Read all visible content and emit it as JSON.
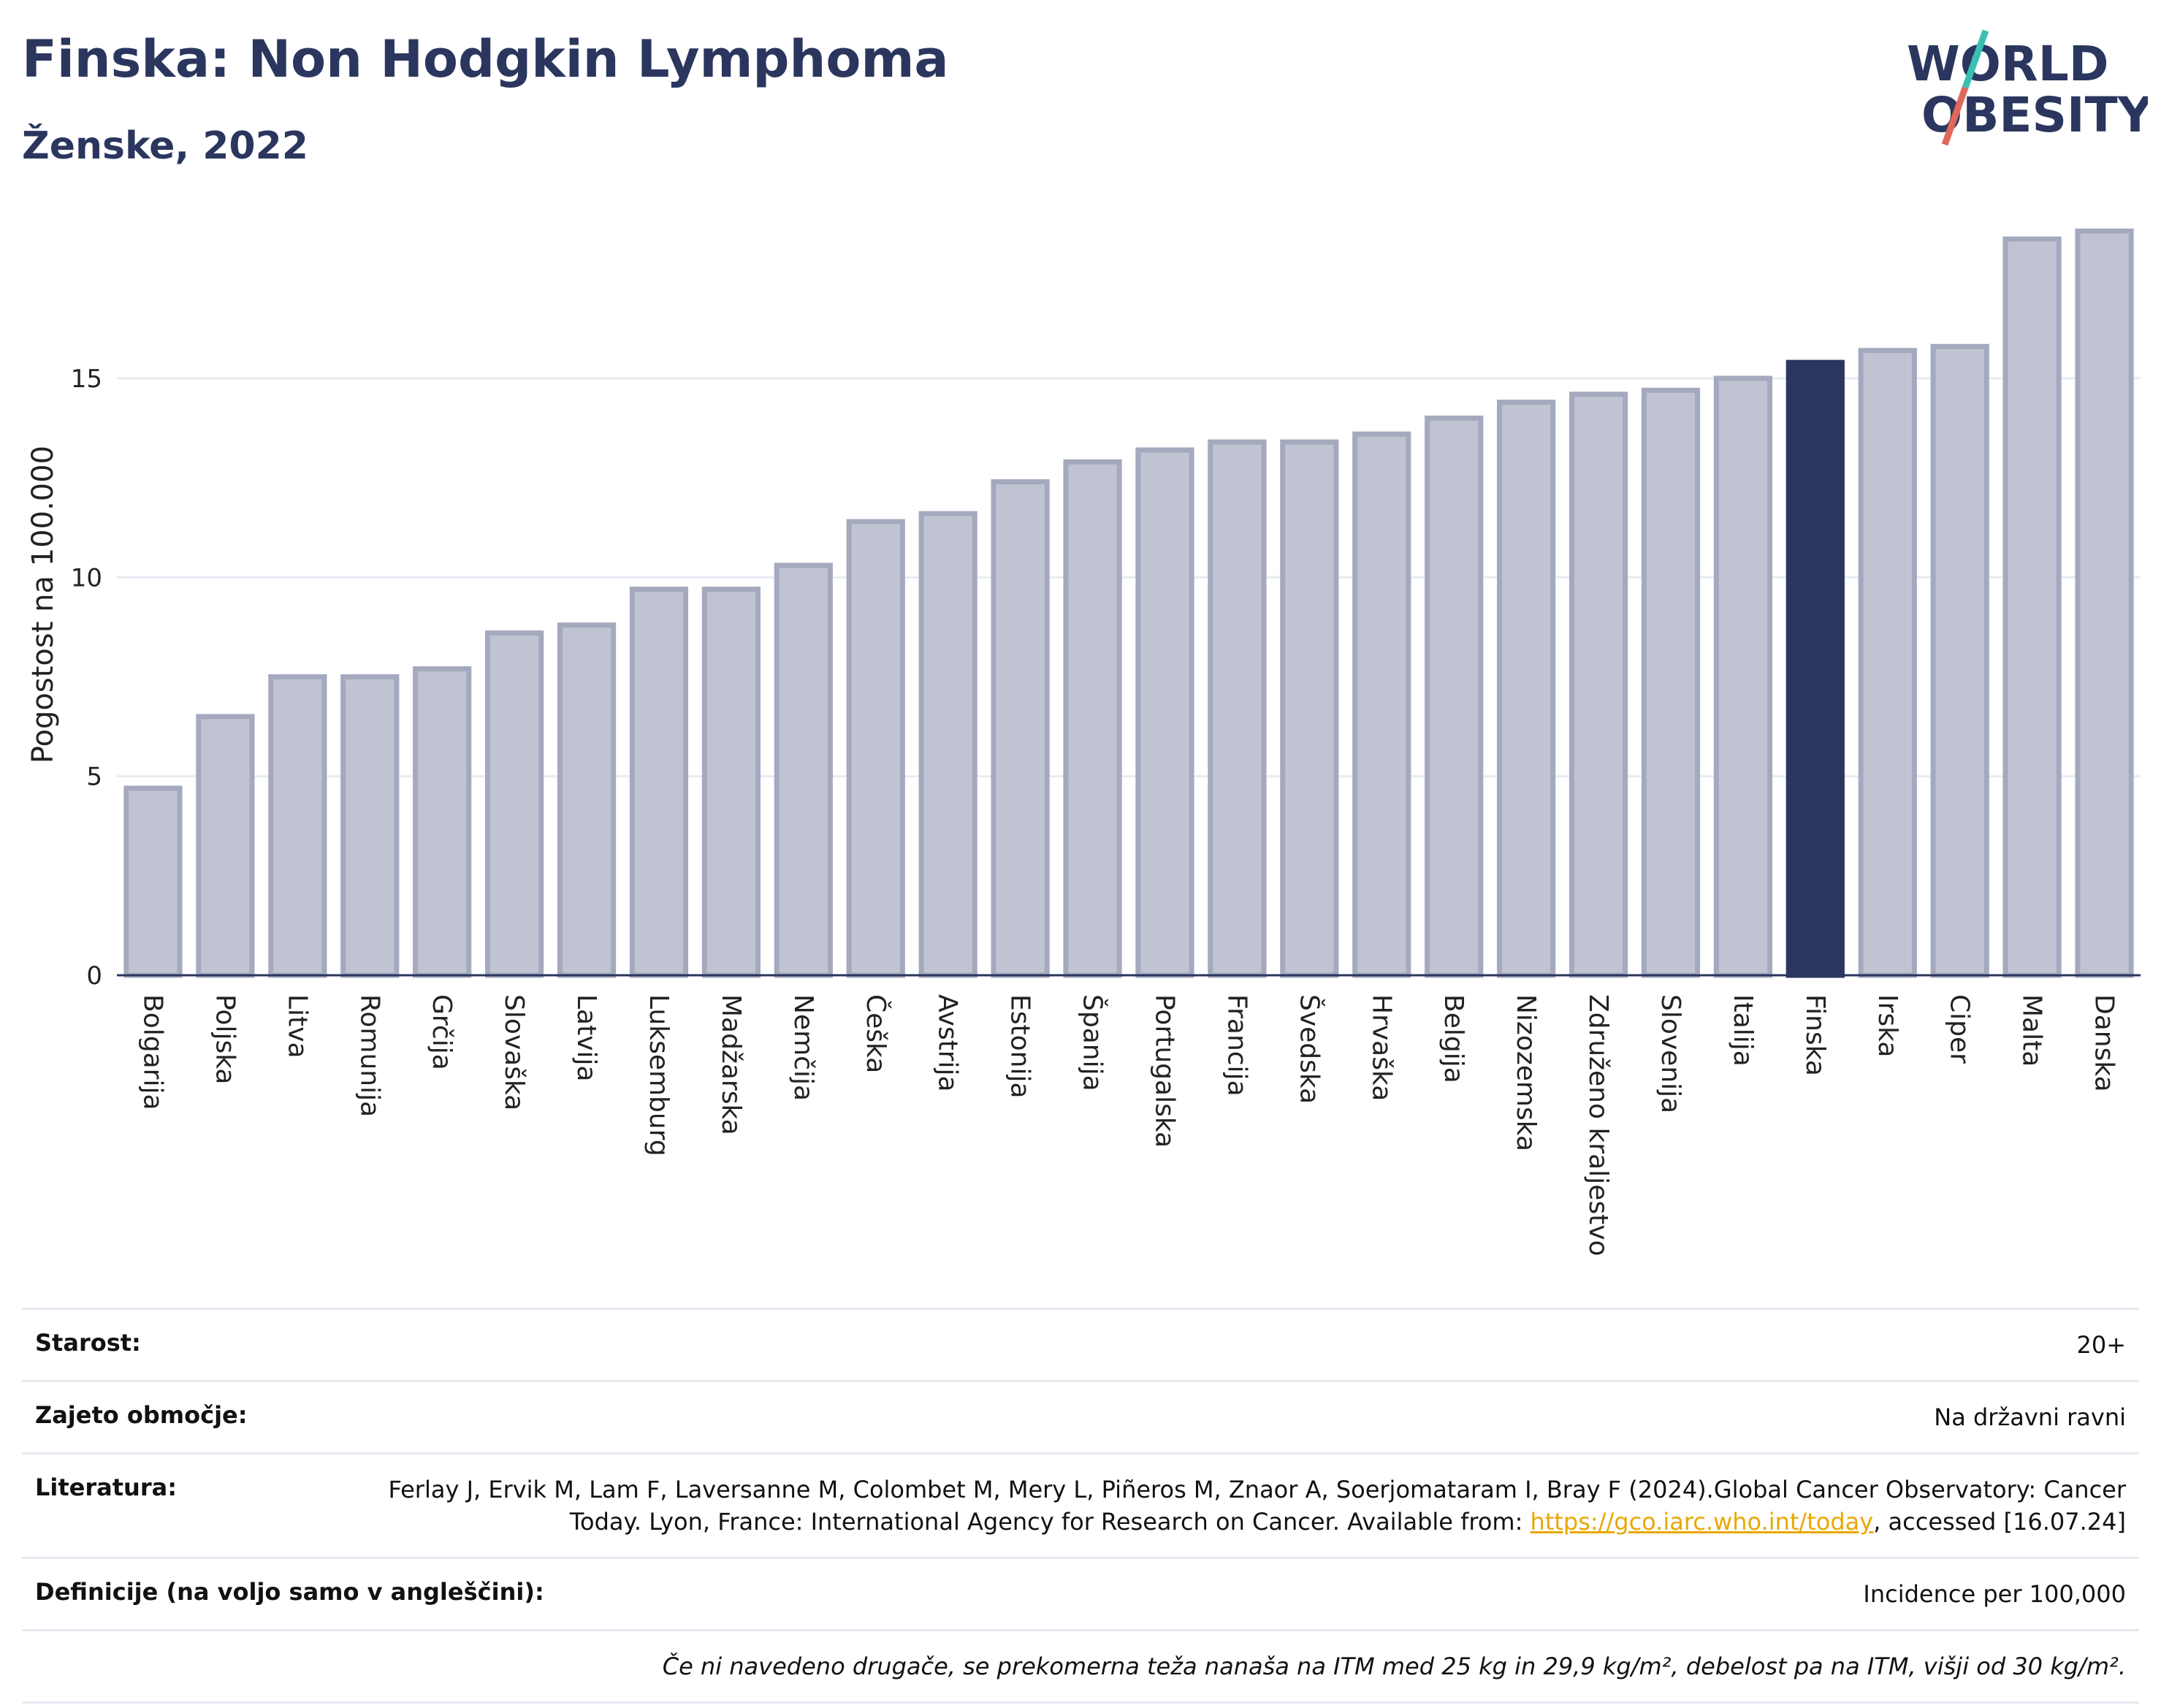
{
  "header": {
    "title": "Finska: Non Hodgkin Lymphoma",
    "subtitle": "Ženske, 2022",
    "logo_line1": "WORLD",
    "logo_line2": "OBESITY"
  },
  "colors": {
    "bar": "#c0c4d2",
    "bar_stroke": "#a4a9be",
    "highlight": "#2b365f",
    "grid": "#e8ebf2",
    "logo_slash_top": "#3bbfb3",
    "logo_slash_bottom": "#e0685a"
  },
  "chart_data": {
    "type": "bar",
    "ylabel": "Pogostost na 100.000",
    "ylim": [
      0,
      19
    ],
    "yticks": [
      0,
      5,
      10,
      15
    ],
    "grid": true,
    "highlight": "Finska",
    "categories": [
      "Bolgarija",
      "Poljska",
      "Litva",
      "Romunija",
      "Grčija",
      "Slovaška",
      "Latvija",
      "Luksemburg",
      "Madžarska",
      "Nemčija",
      "Češka",
      "Avstrija",
      "Estonija",
      "Španija",
      "Portugalska",
      "Francija",
      "Švedska",
      "Hrvaška",
      "Belgija",
      "Nizozemska",
      "Združeno kraljestvo",
      "Slovenija",
      "Italija",
      "Finska",
      "Irska",
      "Ciper",
      "Malta",
      "Danska"
    ],
    "values": [
      4.7,
      6.5,
      7.5,
      7.5,
      7.7,
      8.6,
      8.8,
      9.7,
      9.7,
      10.3,
      11.4,
      11.6,
      12.4,
      12.9,
      13.2,
      13.4,
      13.4,
      13.6,
      14.0,
      14.4,
      14.6,
      14.7,
      15.0,
      15.4,
      15.7,
      15.8,
      18.5,
      18.7
    ]
  },
  "info": {
    "age_label": "Starost:",
    "age_value": "20+",
    "coverage_label": "Zajeto območje:",
    "coverage_value": "Na državni ravni",
    "lit_label": "Literatura:",
    "lit_text1": "Ferlay J, Ervik M, Lam F, Laversanne M, Colombet M, Mery L, Piñeros M, Znaor A, Soerjomataram I, Bray F (2024).Global Cancer Observatory: Cancer Today. Lyon, France: International Agency for Research on Cancer. Available from: ",
    "lit_link": "https://gco.iarc.who.int/today",
    "lit_text2": ", accessed [16.07.24]",
    "def_label": "Definicije (na voljo samo v angleščini):",
    "def_value": "Incidence per 100,000",
    "note": "Če ni navedeno drugače, se prekomerna teža nanaša na ITM med 25 kg in 29,9 kg/m², debelost pa na ITM, višji od 30 kg/m²."
  }
}
